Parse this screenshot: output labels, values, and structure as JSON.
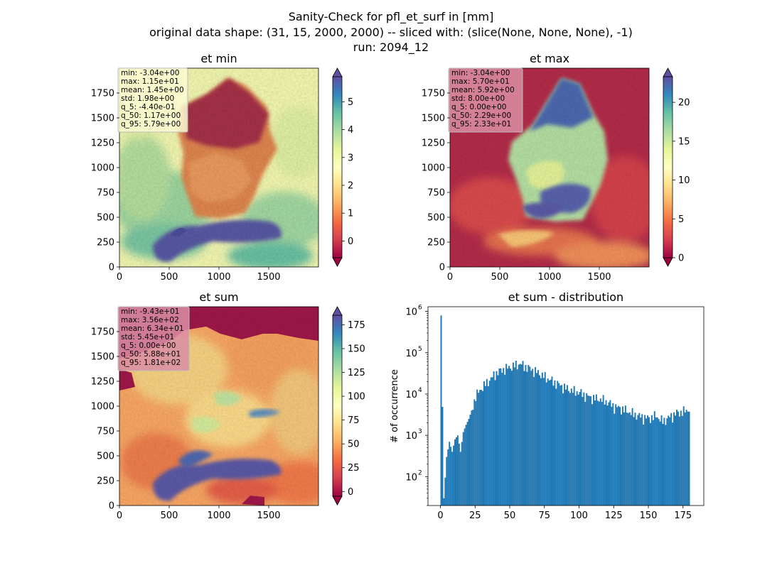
{
  "figure": {
    "title_lines": [
      "Sanity-Check for pfl_et_surf in [mm]",
      "original data shape: (31, 15, 2000, 2000) -- sliced with: (slice(None, None, None), -1)",
      "run: 2094_12"
    ]
  },
  "colormap": "Spectral",
  "colormap_stops": [
    "#9e0142",
    "#d53e4f",
    "#f46d43",
    "#fdae61",
    "#fee08b",
    "#ffffbf",
    "#e6f598",
    "#abdda4",
    "#66c2a5",
    "#3288bd",
    "#5e4fa2"
  ],
  "chart_data": [
    {
      "type": "heatmap",
      "title": "et min",
      "x_ticks": [
        0,
        500,
        1000,
        1500
      ],
      "y_ticks": [
        0,
        250,
        500,
        750,
        1000,
        1250,
        1500,
        1750
      ],
      "xlim": [
        0,
        2000
      ],
      "ylim": [
        0,
        2000
      ],
      "colorbar": {
        "range": [
          -0.6,
          5.9
        ],
        "ticks": [
          0,
          1,
          2,
          3,
          4,
          5
        ],
        "extend": "both"
      },
      "stats": [
        "min: -3.04e+00",
        "max: 1.15e+01",
        "mean: 1.45e+00",
        "std: 1.98e+00",
        "q_5: -4.40e-01",
        "q_50: 1.17e+00",
        "q_95: 5.79e+00"
      ],
      "stats_box_color": "#fafad2"
    },
    {
      "type": "heatmap",
      "title": "et max",
      "x_ticks": [
        0,
        500,
        1000,
        1500
      ],
      "y_ticks": [
        0,
        250,
        500,
        750,
        1000,
        1250,
        1500,
        1750
      ],
      "xlim": [
        0,
        2000
      ],
      "ylim": [
        0,
        2000
      ],
      "colorbar": {
        "range": [
          0,
          23.3
        ],
        "ticks": [
          0,
          5,
          10,
          15,
          20
        ],
        "extend": "both"
      },
      "stats": [
        "min: -3.04e+00",
        "max: 5.70e+01",
        "mean: 5.92e+00",
        "std: 8.00e+00",
        "q_5: 0.00e+00",
        "q_50: 2.29e+00",
        "q_95: 2.33e+01"
      ],
      "stats_box_color": "#d98ea5"
    },
    {
      "type": "heatmap",
      "title": "et sum",
      "x_ticks": [
        0,
        500,
        1000,
        1500
      ],
      "y_ticks": [
        0,
        250,
        500,
        750,
        1000,
        1250,
        1500,
        1750
      ],
      "xlim": [
        0,
        2000
      ],
      "ylim": [
        0,
        2000
      ],
      "colorbar": {
        "range": [
          -5,
          185
        ],
        "ticks": [
          0,
          25,
          50,
          75,
          100,
          125,
          150,
          175
        ],
        "extend": "both"
      },
      "stats": [
        "min: -9.43e+01",
        "max: 3.56e+02",
        "mean: 6.34e+01",
        "std: 5.45e+01",
        "q_5: 0.00e+00",
        "q_50: 5.88e+01",
        "q_95: 1.81e+02"
      ],
      "stats_box_color": "#d98ea5"
    },
    {
      "type": "bar",
      "title": "et sum - distribution",
      "ylabel": "# of occurrence",
      "yscale": "log",
      "color": "#1f77b4",
      "xlim": [
        -9,
        190
      ],
      "ylim": [
        20,
        1300000
      ],
      "x_ticks": [
        0,
        25,
        50,
        75,
        100,
        125,
        150,
        175
      ],
      "y_ticks": [
        {
          "value": 100,
          "label": "10",
          "exp": "2"
        },
        {
          "value": 1000,
          "label": "10",
          "exp": "3"
        },
        {
          "value": 10000,
          "label": "10",
          "exp": "4"
        },
        {
          "value": 100000,
          "label": "10",
          "exp": "5"
        },
        {
          "value": 1000000,
          "label": "10",
          "exp": "6"
        }
      ],
      "bin_width": 1,
      "x": [
        0,
        2,
        4,
        6,
        8,
        10,
        12,
        14,
        16,
        18,
        20,
        22,
        25,
        30,
        35,
        40,
        45,
        50,
        55,
        57,
        60,
        65,
        70,
        75,
        80,
        85,
        90,
        95,
        100,
        105,
        110,
        115,
        120,
        125,
        130,
        135,
        140,
        145,
        150,
        155,
        160,
        165,
        170,
        175,
        180
      ],
      "values": [
        800000,
        30,
        300,
        700,
        400,
        800,
        1000,
        400,
        1200,
        1800,
        2500,
        4000,
        9000,
        15000,
        22000,
        33000,
        40000,
        45000,
        52000,
        54000,
        48000,
        40000,
        33000,
        26000,
        21000,
        17000,
        14000,
        12000,
        11000,
        9000,
        8000,
        7500,
        6500,
        5000,
        4500,
        3800,
        3200,
        2800,
        2600,
        3000,
        2200,
        2800,
        3500,
        3800,
        4500
      ]
    }
  ]
}
